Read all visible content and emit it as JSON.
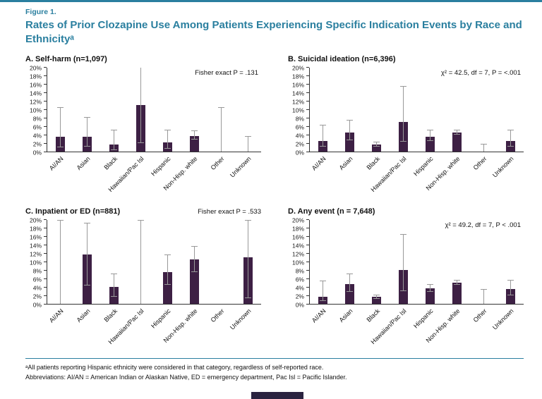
{
  "page": {
    "accent_color": "#2a7f9f",
    "bar_color": "#3d2044",
    "error_bar_color": "#999999",
    "axis_color": "#333333"
  },
  "figure": {
    "label": "Figure 1.",
    "title": "Rates of Prior Clozapine Use Among Patients Experiencing Specific Indication Events by Race and Ethnicityᵃ"
  },
  "footnotes": [
    "ᵃAll patients reporting Hispanic ethnicity were considered in that category, regardless of self-reported race.",
    "Abbreviations: AI/AN = American Indian or Alaskan Native, ED = emergency department, Pac Isl = Pacific Islander."
  ],
  "chart_data": [
    {
      "type": "bar",
      "title": "A. Self-harm (n=1,097)",
      "annotation": "Fisher exact P = .131",
      "annotation_placement": "plot",
      "xlabel": "",
      "ylabel": "",
      "ylim": [
        0,
        20
      ],
      "ytick_step": 2,
      "ytick_suffix": "%",
      "grid": false,
      "legend": "none",
      "categories": [
        "AI/AN",
        "Asian",
        "Black",
        "Hawaiian/Pac Isl",
        "Hispanic",
        "Non-Hisp. white",
        "Other",
        "Unknown"
      ],
      "values": [
        3.6,
        3.6,
        1.6,
        11.1,
        2.2,
        3.7,
        0,
        0
      ],
      "ci_low": [
        1.0,
        1.2,
        0.4,
        2.0,
        0.6,
        2.8,
        0,
        0
      ],
      "ci_high": [
        10.5,
        8.0,
        5.0,
        20.6,
        5.0,
        4.8,
        10.5,
        3.6
      ]
    },
    {
      "type": "bar",
      "title": "B. Suicidal ideation (n=6,396)",
      "annotation": "χ² = 42.5, df = 7, P = <.001",
      "annotation_placement": "plot",
      "xlabel": "",
      "ylabel": "",
      "ylim": [
        0,
        20
      ],
      "ytick_step": 2,
      "ytick_suffix": "%",
      "grid": false,
      "legend": "none",
      "categories": [
        "AI/AN",
        "Asian",
        "Black",
        "Hawaiian/Pac Isl",
        "Hispanic",
        "Non-Hisp. white",
        "Other",
        "Unknown"
      ],
      "values": [
        2.6,
        4.6,
        1.6,
        7.1,
        3.6,
        4.6,
        0,
        2.6
      ],
      "ci_low": [
        1.1,
        2.7,
        1.1,
        2.3,
        2.6,
        4.1,
        0,
        1.2
      ],
      "ci_high": [
        6.2,
        7.4,
        2.2,
        15.5,
        5.0,
        5.1,
        1.6,
        5.0
      ]
    },
    {
      "type": "bar",
      "title": "C. Inpatient or ED (n=881)",
      "annotation": "Fisher exact P = .533",
      "annotation_placement": "header",
      "xlabel": "",
      "ylabel": "",
      "ylim": [
        0,
        20
      ],
      "ytick_step": 2,
      "ytick_suffix": "%",
      "grid": false,
      "legend": "none",
      "categories": [
        "AI/AN",
        "Asian",
        "Black",
        "Hawaiian/Pac Isl",
        "Hispanic",
        "Non-Hisp. white",
        "Other",
        "Unknown"
      ],
      "values": [
        0,
        11.8,
        4.1,
        0,
        7.6,
        10.6,
        0,
        11.1
      ],
      "ci_low": [
        0,
        4.4,
        1.7,
        0,
        4.6,
        7.6,
        0,
        1.4
      ],
      "ci_high": [
        19.8,
        19.2,
        7.0,
        19.8,
        11.6,
        13.6,
        0,
        19.8
      ]
    },
    {
      "type": "bar",
      "title": "D. Any event (n = 7,648)",
      "annotation": "χ² = 49.2, df = 7, P < .001",
      "annotation_placement": "plot",
      "xlabel": "",
      "ylabel": "",
      "ylim": [
        0,
        20
      ],
      "ytick_step": 2,
      "ytick_suffix": "%",
      "grid": false,
      "legend": "none",
      "categories": [
        "AI/AN",
        "Asian",
        "Black",
        "Hawaiian/Pac Isl",
        "Hispanic",
        "Non-Hisp. white",
        "Other",
        "Unknown"
      ],
      "values": [
        1.7,
        4.7,
        1.6,
        8.1,
        3.7,
        5.0,
        0,
        3.6
      ],
      "ci_low": [
        0.6,
        2.9,
        1.1,
        3.0,
        2.9,
        4.6,
        0,
        2.1
      ],
      "ci_high": [
        5.3,
        7.0,
        2.1,
        16.5,
        4.6,
        5.5,
        3.4,
        5.6
      ]
    }
  ]
}
